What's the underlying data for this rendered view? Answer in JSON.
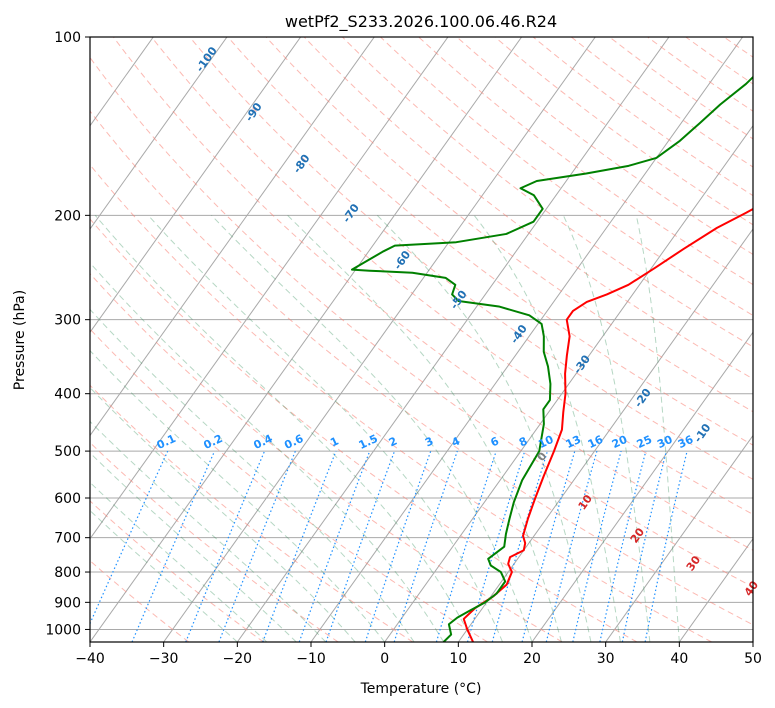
{
  "chart_data": {
    "type": "line",
    "title": "wetPf2_S233.2026.100.06.46.R24",
    "xlabel": "Temperature (°C)",
    "ylabel": "Pressure (hPa)",
    "xlim": [
      -40,
      50
    ],
    "ylim": [
      1050,
      100
    ],
    "y_scale": "log",
    "grid": true,
    "x_ticks": [
      "−40",
      "−30",
      "−20",
      "−10",
      "0",
      "10",
      "20",
      "30",
      "40",
      "50"
    ],
    "y_ticks": [
      "100",
      "200",
      "300",
      "400",
      "500",
      "600",
      "700",
      "800",
      "900",
      "1000"
    ],
    "series": [
      {
        "name": "",
        "color": "#ff0000",
        "points": [
          [
            12,
            1050
          ],
          [
            10,
            1000
          ],
          [
            8.5,
            960
          ],
          [
            9,
            920
          ],
          [
            10.3,
            880
          ],
          [
            11,
            840
          ],
          [
            10.5,
            800
          ],
          [
            9.2,
            775
          ],
          [
            8.8,
            755
          ],
          [
            10,
            735
          ],
          [
            9.5,
            715
          ],
          [
            8.5,
            695
          ],
          [
            7.5,
            650
          ],
          [
            6.5,
            600
          ],
          [
            5.5,
            550
          ],
          [
            4.5,
            500
          ],
          [
            3.5,
            460
          ],
          [
            2,
            430
          ],
          [
            0.5,
            400
          ],
          [
            -1.5,
            370
          ],
          [
            -3,
            345
          ],
          [
            -4.5,
            320
          ],
          [
            -6.5,
            300
          ],
          [
            -6.5,
            290
          ],
          [
            -5.5,
            280
          ],
          [
            -3.5,
            272
          ],
          [
            -1.5,
            262
          ],
          [
            0.5,
            245
          ],
          [
            2.5,
            228
          ],
          [
            5,
            210
          ],
          [
            7.5,
            198
          ],
          [
            10.5,
            183
          ],
          [
            14,
            168
          ],
          [
            16.5,
            158
          ],
          [
            19,
            145
          ],
          [
            21.5,
            133
          ],
          [
            24,
            121
          ],
          [
            26,
            111
          ],
          [
            28,
            102
          ],
          [
            29,
            96
          ]
        ]
      },
      {
        "name": "",
        "color": "#008000",
        "points": [
          [
            8,
            1050
          ],
          [
            8.3,
            1020
          ],
          [
            7,
            980
          ],
          [
            7.5,
            955
          ],
          [
            8.5,
            930
          ],
          [
            9.8,
            900
          ],
          [
            10.5,
            870
          ],
          [
            10.5,
            830
          ],
          [
            9,
            800
          ],
          [
            7,
            780
          ],
          [
            6,
            760
          ],
          [
            7,
            725
          ],
          [
            6,
            690
          ],
          [
            5,
            650
          ],
          [
            4,
            610
          ],
          [
            3,
            560
          ],
          [
            2.5,
            500
          ],
          [
            0.5,
            450
          ],
          [
            -1,
            425
          ],
          [
            -1,
            410
          ],
          [
            -2.5,
            385
          ],
          [
            -4.5,
            360
          ],
          [
            -6.5,
            340
          ],
          [
            -8,
            320
          ],
          [
            -9.5,
            305
          ],
          [
            -12,
            295
          ],
          [
            -17,
            285
          ],
          [
            -23,
            279
          ],
          [
            -24.5,
            272
          ],
          [
            -25,
            262
          ],
          [
            -27,
            255
          ],
          [
            -32,
            250
          ],
          [
            -38,
            248
          ],
          [
            -40.5,
            247
          ],
          [
            -39.5,
            240
          ],
          [
            -38,
            230
          ],
          [
            -37,
            225
          ],
          [
            -29,
            222
          ],
          [
            -23,
            215
          ],
          [
            -20.5,
            205
          ],
          [
            -20.5,
            195
          ],
          [
            -23,
            185
          ],
          [
            -25.5,
            180
          ],
          [
            -24,
            175
          ],
          [
            -18,
            170
          ],
          [
            -13,
            165
          ],
          [
            -10,
            160
          ],
          [
            -8.5,
            150
          ],
          [
            -7.5,
            140
          ],
          [
            -6.5,
            130
          ],
          [
            -5,
            120
          ],
          [
            -4,
            110
          ],
          [
            -3.5,
            100
          ]
        ]
      }
    ],
    "isotherm_color": "#a9a9a9",
    "dry_adiabat_color": "#fa8072",
    "moist_adiabat_color": "#2e8b57",
    "mixing_ratio_color": "#1e90ff",
    "mixing_ratio_labels": [
      "0.1",
      "0.2",
      "0.4",
      "0.6",
      "1",
      "1.5",
      "2",
      "3",
      "4",
      "6",
      "8",
      "10",
      "13",
      "16",
      "20",
      "25",
      "30",
      "36"
    ],
    "mixing_ratio_values": [
      0.1,
      0.2,
      0.4,
      0.6,
      1,
      1.5,
      2,
      3,
      4,
      6,
      8,
      10,
      13,
      16,
      20,
      25,
      30,
      36
    ],
    "upper_labels": [
      "-100",
      "-90",
      "-80",
      "-70",
      "-60",
      "-50",
      "-40",
      "-30",
      "-20",
      "-10"
    ],
    "upper_label_values": [
      -100,
      -90,
      -80,
      -70,
      -60,
      -50,
      -40,
      -30,
      -20,
      -10
    ],
    "upper_label_color": "#2171b5",
    "lower_labels": [
      "0",
      "10",
      "20",
      "30",
      "40"
    ],
    "lower_label_values": [
      0,
      10,
      20,
      30,
      40
    ],
    "lower_label_colors": [
      "#808080",
      "#d62728",
      "#d62728",
      "#d62728",
      "#d62728"
    ]
  }
}
